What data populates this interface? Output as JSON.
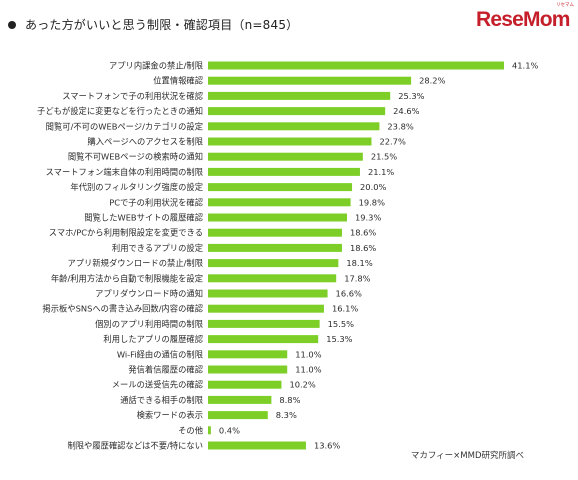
{
  "header": {
    "title": "あった方がいいと思う制限・確認項目（n=845）"
  },
  "logo": {
    "small_text": "リセマム",
    "text": "ReseMom"
  },
  "colors": {
    "bar": "#7dcf27",
    "logo": "#c41f2a"
  },
  "footer": {
    "source": "マカフィー×MMD研究所調べ"
  },
  "chart_data": {
    "type": "bar",
    "orientation": "horizontal",
    "title": "あった方がいいと思う制限・確認項目（n=845）",
    "value_suffix": "%",
    "categories": [
      "アプリ内課金の禁止/制限",
      "位置情報確認",
      "スマートフォンで子の利用状況を確認",
      "子どもが設定に変更などを行ったときの通知",
      "閲覧可/不可のWEBページ/カテゴリの設定",
      "購入ページへのアクセスを制限",
      "閲覧不可WEBページの検索時の通知",
      "スマートフォン端末自体の利用時間の制限",
      "年代別のフィルタリング強度の設定",
      "PCで子の利用状況を確認",
      "閲覧したWEBサイトの履歴確認",
      "スマホ/PCから利用制限設定を変更できる",
      "利用できるアプリの設定",
      "アプリ新規ダウンロードの禁止/制限",
      "年齢/利用方法から自動で制限機能を設定",
      "アプリダウンロード時の通知",
      "掲示板やSNSへの書き込み回数/内容の確認",
      "個別のアプリ利用時間の制限",
      "利用したアプリの履歴確認",
      "Wi-Fi経由の通信の制限",
      "発信着信履歴の確認",
      "メールの送受信先の確認",
      "通話できる相手の制限",
      "検索ワードの表示",
      "その他",
      "制限や履歴確認などは不要/特にない"
    ],
    "values": [
      41.1,
      28.2,
      25.3,
      24.6,
      23.8,
      22.7,
      21.5,
      21.1,
      20.0,
      19.8,
      19.3,
      18.6,
      18.6,
      18.1,
      17.8,
      16.6,
      16.1,
      15.5,
      15.3,
      11.0,
      11.0,
      10.2,
      8.8,
      8.3,
      0.4,
      13.6
    ],
    "value_labels": [
      "41.1%",
      "28.2%",
      "25.3%",
      "24.6%",
      "23.8%",
      "22.7%",
      "21.5%",
      "21.1%",
      "20.0%",
      "19.8%",
      "19.3%",
      "18.6%",
      "18.6%",
      "18.1%",
      "17.8%",
      "16.6%",
      "16.1%",
      "15.5%",
      "15.3%",
      "11.0%",
      "11.0%",
      "10.2%",
      "8.8%",
      "8.3%",
      "0.4%",
      "13.6%"
    ],
    "xlim": [
      0,
      41.1
    ],
    "grid": false,
    "legend": "none"
  }
}
